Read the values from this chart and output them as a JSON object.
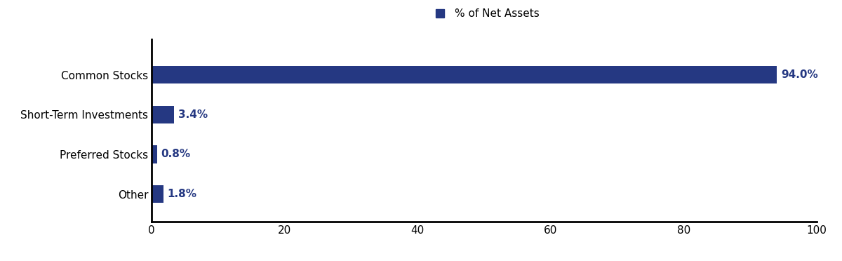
{
  "categories": [
    "Common Stocks",
    "Short-Term Investments",
    "Preferred Stocks",
    "Other"
  ],
  "values": [
    94.0,
    3.4,
    0.8,
    1.8
  ],
  "labels": [
    "94.0%",
    "3.4%",
    "0.8%",
    "1.8%"
  ],
  "bar_color": "#253882",
  "label_color": "#253882",
  "legend_label": "% of Net Assets",
  "xlim": [
    0,
    100
  ],
  "xticks": [
    0,
    20,
    40,
    60,
    80,
    100
  ],
  "background_color": "#ffffff",
  "bar_height": 0.45,
  "label_fontsize": 11,
  "tick_fontsize": 11,
  "ytick_fontsize": 11,
  "legend_fontsize": 11,
  "figsize": [
    12.0,
    3.72
  ],
  "dpi": 100
}
